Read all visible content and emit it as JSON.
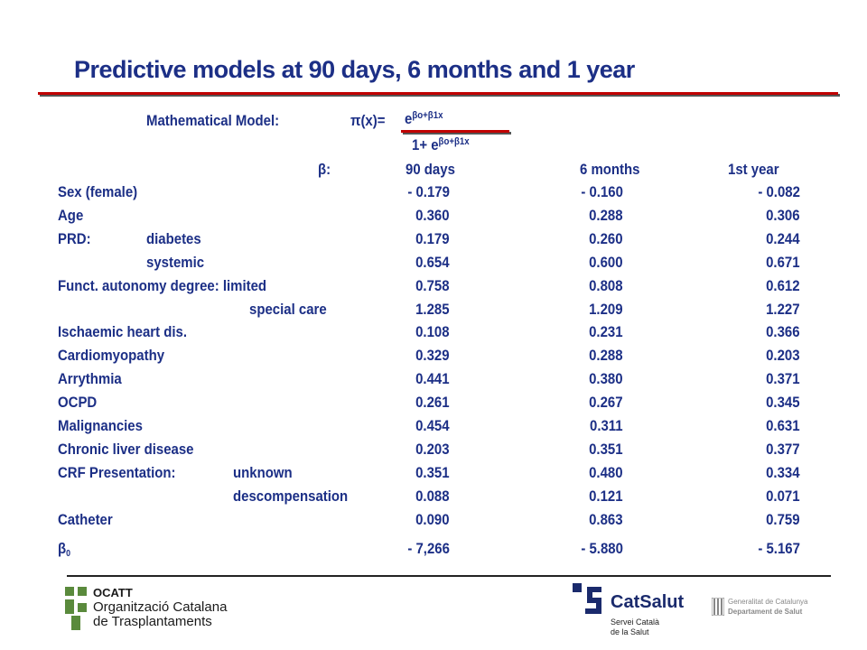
{
  "title": "Predictive models at 90 days, 6 months and 1 year",
  "model": {
    "label": "Mathematical Model:",
    "lhs": "π(x)=",
    "num_base": "e",
    "num_exp": "βo+β1x",
    "den_base": "1+ e",
    "den_exp": "βo+β1x"
  },
  "headers": {
    "beta": "β:",
    "col1": "90 days",
    "col2": "6 months",
    "col3": "1st year"
  },
  "rows": [
    {
      "label": "Sex (female)",
      "sub": "",
      "v1": "- 0.179",
      "v2": "- 0.160",
      "v3": "- 0.082"
    },
    {
      "label": "Age",
      "sub": "",
      "v1": "0.360",
      "v2": "0.288",
      "v3": "0.306"
    },
    {
      "label": "PRD:",
      "sub": "diabetes",
      "v1": "0.179",
      "v2": "0.260",
      "v3": "0.244"
    },
    {
      "label": "",
      "sub": "systemic",
      "v1": "0.654",
      "v2": "0.600",
      "v3": "0.671"
    },
    {
      "label": "Funct. autonomy degree: limited",
      "sub": "",
      "v1": "0.758",
      "v2": "0.808",
      "v3": "0.612"
    },
    {
      "label": "",
      "sub": "special care",
      "v1": "1.285",
      "v2": "1.209",
      "v3": "1.227"
    },
    {
      "label": "Ischaemic heart dis.",
      "sub": "",
      "v1": "0.108",
      "v2": "0.231",
      "v3": "0.366"
    },
    {
      "label": "Cardiomyopathy",
      "sub": "",
      "v1": "0.329",
      "v2": "0.288",
      "v3": "0.203"
    },
    {
      "label": "Arrythmia",
      "sub": "",
      "v1": "0.441",
      "v2": "0.380",
      "v3": "0.371"
    },
    {
      "label": "OCPD",
      "sub": "",
      "v1": "0.261",
      "v2": "0.267",
      "v3": "0.345"
    },
    {
      "label": "Malignancies",
      "sub": "",
      "v1": "0.454",
      "v2": "0.311",
      "v3": "0.631"
    },
    {
      "label": "Chronic liver disease",
      "sub": "",
      "v1": "0.203",
      "v2": "0.351",
      "v3": "0.377"
    },
    {
      "label": "CRF Presentation:",
      "sub": "unknown",
      "v1": "0.351",
      "v2": "0.480",
      "v3": "0.334"
    },
    {
      "label": "",
      "sub": "descompensation",
      "v1": "0.088",
      "v2": "0.121",
      "v3": "0.071"
    },
    {
      "label": "Catheter",
      "sub": "",
      "v1": "0.090",
      "v2": "0.863",
      "v3": "0.759"
    }
  ],
  "beta0": {
    "symbol": "β",
    "subscript": "0",
    "v1": "- 7,266",
    "v2": "- 5.880",
    "v3": "- 5.167"
  },
  "logos": {
    "ocatt_abbr": "OCATT",
    "ocatt_line1": "Organització Catalana",
    "ocatt_line2": "de Trasplantaments",
    "catsalut_name": "CatSalut",
    "catsalut_line1": "Servei Català",
    "catsalut_line2": "de la Salut",
    "gencat_line1": "Generalitat de Catalunya",
    "gencat_line2": "Departament de Salut"
  },
  "colors": {
    "text": "#1c2f86",
    "rule": "#c00000",
    "logo_green": "#5a8a3c",
    "logo_navy": "#1a2a6c"
  }
}
